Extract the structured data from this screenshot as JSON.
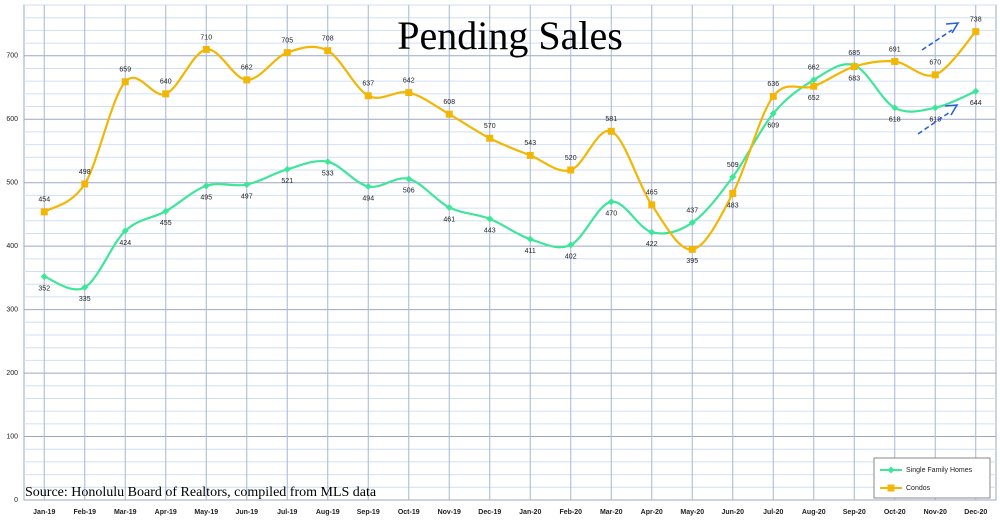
{
  "chart_data": {
    "type": "line",
    "title": "Pending Sales",
    "source": "Source: Honolulu Board of Realtors, compiled from MLS data",
    "categories": [
      "Jan-19",
      "Feb-19",
      "Mar-19",
      "Apr-19",
      "May-19",
      "Jun-19",
      "Jul-19",
      "Aug-19",
      "Sep-19",
      "Oct-19",
      "Nov-19",
      "Dec-19",
      "Jan-20",
      "Feb-20",
      "Mar-20",
      "Apr-20",
      "May-20",
      "Jun-20",
      "Jul-20",
      "Aug-20",
      "Sep-20",
      "Oct-20",
      "Nov-20",
      "Dec-20"
    ],
    "series": [
      {
        "name": "Single Family Homes",
        "color": "#3fe69a",
        "marker": "diamond",
        "values": [
          352,
          335,
          424,
          455,
          495,
          497,
          521,
          533,
          494,
          506,
          461,
          443,
          411,
          402,
          470,
          422,
          437,
          509,
          609,
          662,
          685,
          618,
          618,
          644
        ]
      },
      {
        "name": "Condos",
        "color": "#f2b705",
        "marker": "square",
        "values": [
          454,
          498,
          659,
          640,
          710,
          662,
          705,
          708,
          637,
          642,
          608,
          570,
          543,
          520,
          581,
          465,
          395,
          483,
          636,
          652,
          683,
          691,
          670,
          738
        ]
      }
    ],
    "ylim": [
      0,
      780
    ],
    "yticks": [
      0,
      100,
      200,
      300,
      400,
      500,
      600,
      700
    ],
    "grid": true,
    "legend": "bottom-right"
  }
}
